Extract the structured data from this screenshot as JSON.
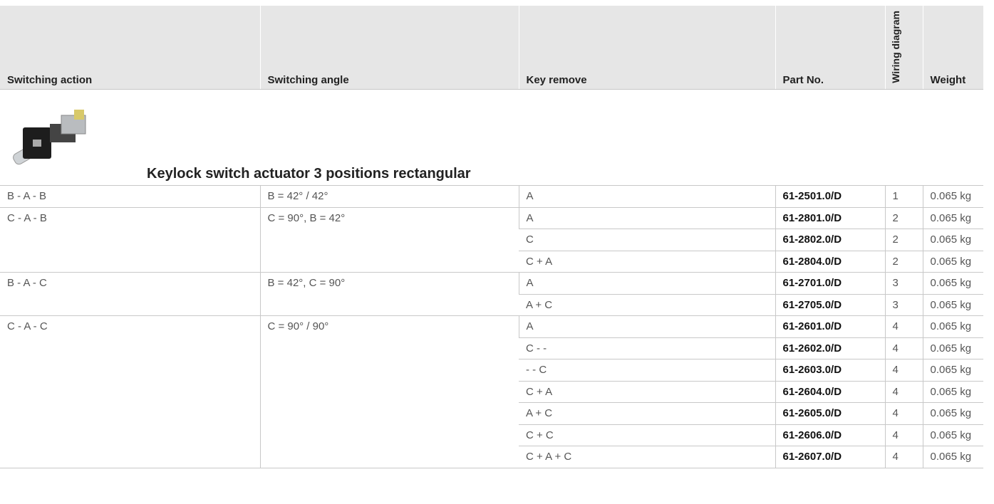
{
  "table": {
    "headers": [
      "Switching action",
      "Switching angle",
      "Key remove",
      "Part No.",
      "Wiring diagram",
      "Weight"
    ],
    "section_title": "Keylock switch actuator 3 positions rectangular",
    "groups": [
      {
        "action": "B - A - B",
        "angle": "B = 42° / 42°",
        "items": [
          {
            "key": "A",
            "part": "61-2501.0/D",
            "wiring": "1",
            "weight": "0.065 kg"
          }
        ]
      },
      {
        "action": "C - A - B",
        "angle": "C = 90°, B = 42°",
        "items": [
          {
            "key": "A",
            "part": "61-2801.0/D",
            "wiring": "2",
            "weight": "0.065 kg"
          },
          {
            "key": "C",
            "part": "61-2802.0/D",
            "wiring": "2",
            "weight": "0.065 kg"
          },
          {
            "key": "C + A",
            "part": "61-2804.0/D",
            "wiring": "2",
            "weight": "0.065 kg"
          }
        ]
      },
      {
        "action": "B - A - C",
        "angle": "B = 42°, C = 90°",
        "items": [
          {
            "key": "A",
            "part": "61-2701.0/D",
            "wiring": "3",
            "weight": "0.065 kg"
          },
          {
            "key": "A + C",
            "part": "61-2705.0/D",
            "wiring": "3",
            "weight": "0.065 kg"
          }
        ]
      },
      {
        "action": "C - A - C",
        "angle": "C = 90° / 90°",
        "items": [
          {
            "key": "A",
            "part": "61-2601.0/D",
            "wiring": "4",
            "weight": "0.065 kg"
          },
          {
            "key": "C - -",
            "part": "61-2602.0/D",
            "wiring": "4",
            "weight": "0.065 kg"
          },
          {
            "key": "- - C",
            "part": "61-2603.0/D",
            "wiring": "4",
            "weight": "0.065 kg"
          },
          {
            "key": "C + A",
            "part": "61-2604.0/D",
            "wiring": "4",
            "weight": "0.065 kg"
          },
          {
            "key": "A + C",
            "part": "61-2605.0/D",
            "wiring": "4",
            "weight": "0.065 kg"
          },
          {
            "key": "C + C",
            "part": "61-2606.0/D",
            "wiring": "4",
            "weight": "0.065 kg"
          },
          {
            "key": "C + A + C",
            "part": "61-2607.0/D",
            "wiring": "4",
            "weight": "0.065 kg"
          }
        ]
      }
    ]
  }
}
